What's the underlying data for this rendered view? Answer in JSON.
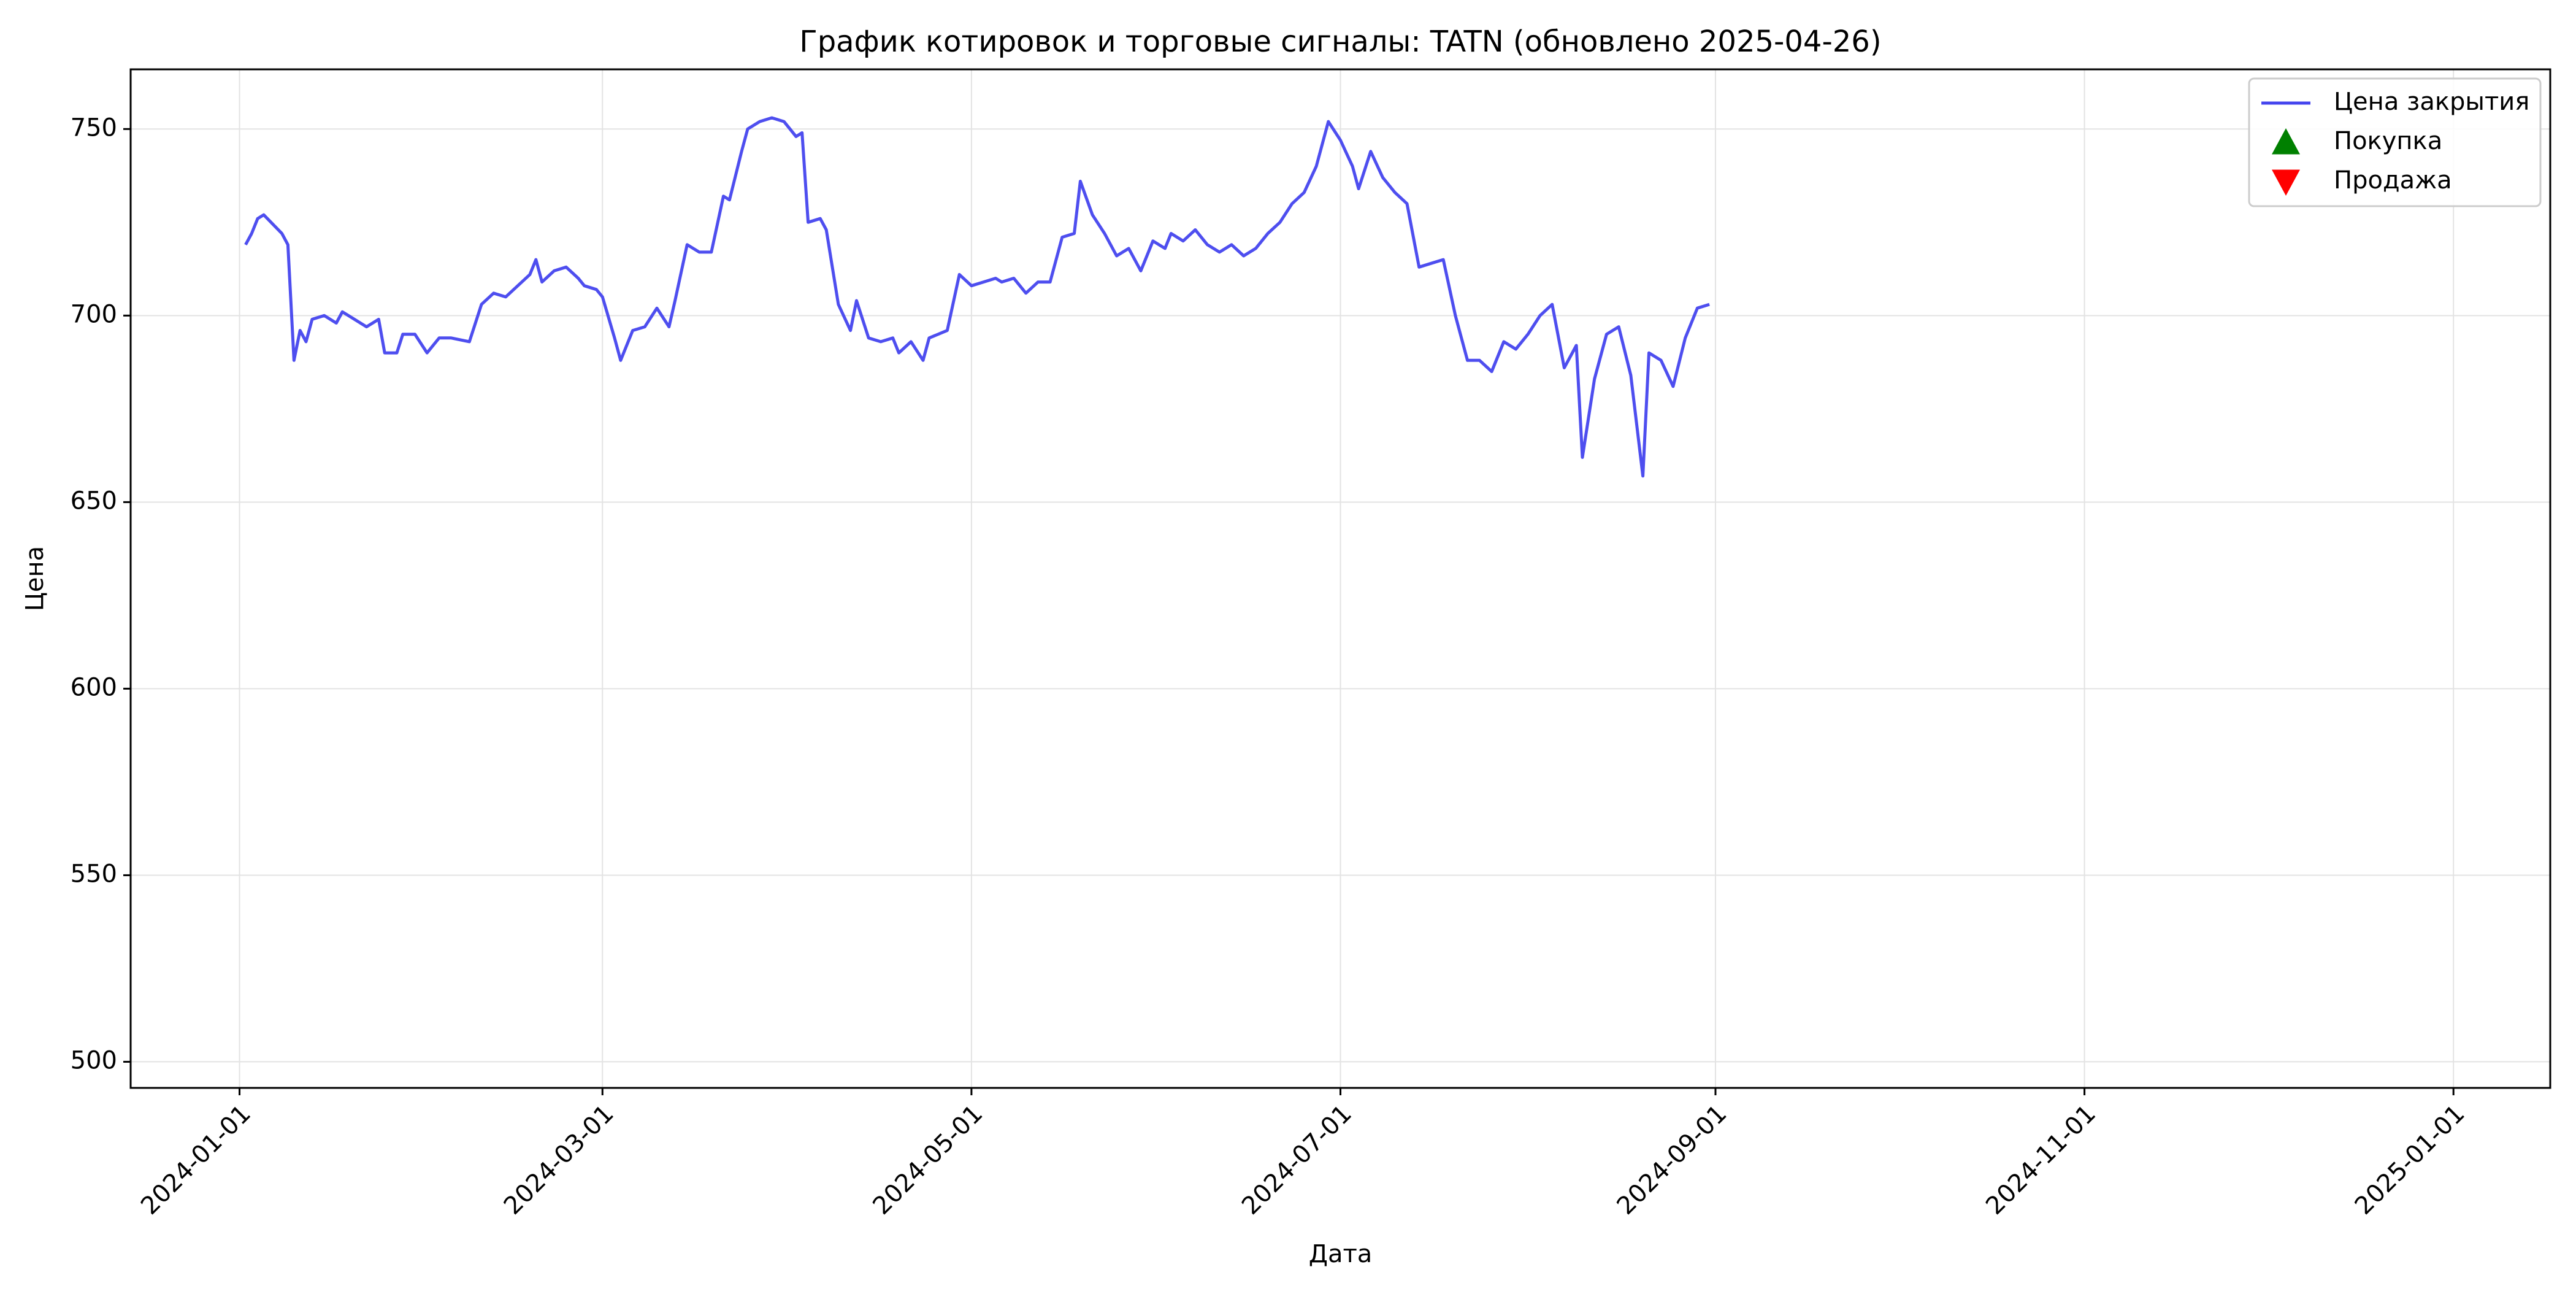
{
  "chart_data": {
    "type": "line",
    "title": "График котировок и торговые сигналы: TATN (обновлено 2025-04-26)",
    "xlabel": "Дата",
    "ylabel": "Цена",
    "x_axis_kind": "date",
    "xlim": [
      "2023-12-14",
      "2025-01-17"
    ],
    "ylim": [
      493,
      766
    ],
    "x_ticks": [
      "2024-01-01",
      "2024-03-01",
      "2024-05-01",
      "2024-07-01",
      "2024-09-01",
      "2024-11-01",
      "2025-01-01"
    ],
    "y_ticks": [
      500,
      550,
      600,
      650,
      700,
      750
    ],
    "grid": true,
    "legend_position": "top-right",
    "series": [
      {
        "name": "Цена закрытия",
        "type": "line",
        "color": "#4444ee",
        "points": [
          [
            "2024-01-02",
            719
          ],
          [
            "2024-01-03",
            722
          ],
          [
            "2024-01-04",
            726
          ],
          [
            "2024-01-05",
            727
          ],
          [
            "2024-01-08",
            722
          ],
          [
            "2024-01-09",
            719
          ],
          [
            "2024-01-10",
            688
          ],
          [
            "2024-01-11",
            696
          ],
          [
            "2024-01-12",
            693
          ],
          [
            "2024-01-13",
            699
          ],
          [
            "2024-01-15",
            700
          ],
          [
            "2024-01-17",
            698
          ],
          [
            "2024-01-18",
            701
          ],
          [
            "2024-01-19",
            700
          ],
          [
            "2024-01-22",
            697
          ],
          [
            "2024-01-24",
            699
          ],
          [
            "2024-01-25",
            690
          ],
          [
            "2024-01-27",
            690
          ],
          [
            "2024-01-28",
            695
          ],
          [
            "2024-01-30",
            695
          ],
          [
            "2024-02-01",
            690
          ],
          [
            "2024-02-03",
            694
          ],
          [
            "2024-02-05",
            694
          ],
          [
            "2024-02-08",
            693
          ],
          [
            "2024-02-10",
            703
          ],
          [
            "2024-02-12",
            706
          ],
          [
            "2024-02-14",
            705
          ],
          [
            "2024-02-16",
            708
          ],
          [
            "2024-02-18",
            711
          ],
          [
            "2024-02-19",
            715
          ],
          [
            "2024-02-20",
            709
          ],
          [
            "2024-02-22",
            712
          ],
          [
            "2024-02-24",
            713
          ],
          [
            "2024-02-26",
            710
          ],
          [
            "2024-02-27",
            708
          ],
          [
            "2024-02-29",
            707
          ],
          [
            "2024-03-01",
            705
          ],
          [
            "2024-03-03",
            694
          ],
          [
            "2024-03-04",
            688
          ],
          [
            "2024-03-06",
            696
          ],
          [
            "2024-03-08",
            697
          ],
          [
            "2024-03-10",
            702
          ],
          [
            "2024-03-12",
            697
          ],
          [
            "2024-03-13",
            704
          ],
          [
            "2024-03-15",
            719
          ],
          [
            "2024-03-17",
            717
          ],
          [
            "2024-03-19",
            717
          ],
          [
            "2024-03-21",
            732
          ],
          [
            "2024-03-22",
            731
          ],
          [
            "2024-03-24",
            744
          ],
          [
            "2024-03-25",
            750
          ],
          [
            "2024-03-27",
            752
          ],
          [
            "2024-03-29",
            753
          ],
          [
            "2024-03-31",
            752
          ],
          [
            "2024-04-02",
            748
          ],
          [
            "2024-04-03",
            749
          ],
          [
            "2024-04-04",
            725
          ],
          [
            "2024-04-06",
            726
          ],
          [
            "2024-04-07",
            723
          ],
          [
            "2024-04-09",
            703
          ],
          [
            "2024-04-11",
            696
          ],
          [
            "2024-04-12",
            704
          ],
          [
            "2024-04-14",
            694
          ],
          [
            "2024-04-16",
            693
          ],
          [
            "2024-04-18",
            694
          ],
          [
            "2024-04-19",
            690
          ],
          [
            "2024-04-21",
            693
          ],
          [
            "2024-04-23",
            688
          ],
          [
            "2024-04-24",
            694
          ],
          [
            "2024-04-27",
            696
          ],
          [
            "2024-04-29",
            711
          ],
          [
            "2024-05-01",
            708
          ],
          [
            "2024-05-03",
            709
          ],
          [
            "2024-05-05",
            710
          ],
          [
            "2024-05-06",
            709
          ],
          [
            "2024-05-08",
            710
          ],
          [
            "2024-05-10",
            706
          ],
          [
            "2024-05-12",
            709
          ],
          [
            "2024-05-14",
            709
          ],
          [
            "2024-05-16",
            721
          ],
          [
            "2024-05-18",
            722
          ],
          [
            "2024-05-19",
            736
          ],
          [
            "2024-05-21",
            727
          ],
          [
            "2024-05-23",
            722
          ],
          [
            "2024-05-25",
            716
          ],
          [
            "2024-05-27",
            718
          ],
          [
            "2024-05-29",
            712
          ],
          [
            "2024-05-31",
            720
          ],
          [
            "2024-06-02",
            718
          ],
          [
            "2024-06-03",
            722
          ],
          [
            "2024-06-05",
            720
          ],
          [
            "2024-06-07",
            723
          ],
          [
            "2024-06-09",
            719
          ],
          [
            "2024-06-11",
            717
          ],
          [
            "2024-06-13",
            719
          ],
          [
            "2024-06-15",
            716
          ],
          [
            "2024-06-17",
            718
          ],
          [
            "2024-06-19",
            722
          ],
          [
            "2024-06-21",
            725
          ],
          [
            "2024-06-23",
            730
          ],
          [
            "2024-06-25",
            733
          ],
          [
            "2024-06-27",
            740
          ],
          [
            "2024-06-29",
            752
          ],
          [
            "2024-07-01",
            747
          ],
          [
            "2024-07-03",
            740
          ],
          [
            "2024-07-04",
            734
          ],
          [
            "2024-07-06",
            744
          ],
          [
            "2024-07-08",
            737
          ],
          [
            "2024-07-10",
            733
          ],
          [
            "2024-07-12",
            730
          ],
          [
            "2024-07-14",
            713
          ],
          [
            "2024-07-16",
            714
          ],
          [
            "2024-07-18",
            715
          ],
          [
            "2024-07-20",
            700
          ],
          [
            "2024-07-22",
            688
          ],
          [
            "2024-07-24",
            688
          ],
          [
            "2024-07-26",
            685
          ],
          [
            "2024-07-28",
            693
          ],
          [
            "2024-07-30",
            691
          ],
          [
            "2024-08-01",
            695
          ],
          [
            "2024-08-03",
            700
          ],
          [
            "2024-08-05",
            703
          ],
          [
            "2024-08-07",
            686
          ],
          [
            "2024-08-09",
            692
          ],
          [
            "2024-08-10",
            662
          ],
          [
            "2024-08-12",
            683
          ],
          [
            "2024-08-14",
            695
          ],
          [
            "2024-08-16",
            697
          ],
          [
            "2024-08-18",
            684
          ],
          [
            "2024-08-20",
            657
          ],
          [
            "2024-08-21",
            690
          ],
          [
            "2024-08-23",
            688
          ],
          [
            "2024-08-25",
            681
          ],
          [
            "2024-08-27",
            694
          ],
          [
            "2024-08-29",
            702
          ],
          [
            "2024-08-31",
            703
          ]
        ]
      },
      {
        "name": "Покупка",
        "type": "marker",
        "marker": "triangle-up",
        "color": "#008000",
        "points": []
      },
      {
        "name": "Продажа",
        "type": "marker",
        "marker": "triangle-down",
        "color": "#ff0000",
        "points": []
      }
    ]
  }
}
